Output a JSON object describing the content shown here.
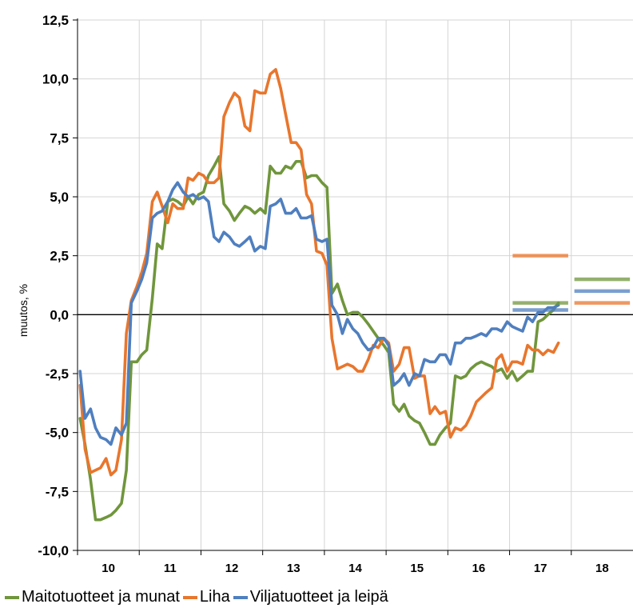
{
  "chart_data": {
    "type": "line",
    "ylabel": "muutos, %",
    "xlabel": "",
    "ylim": [
      -10,
      12.5
    ],
    "yticks": [
      "12,5",
      "10,0",
      "7,5",
      "5,0",
      "2,5",
      "0,0",
      "-2,5",
      "-5,0",
      "-7,5",
      "-10,0"
    ],
    "ytick_values": [
      12.5,
      10,
      7.5,
      5,
      2.5,
      0,
      -2.5,
      -5,
      -7.5,
      -10
    ],
    "xlim": [
      9.5,
      18.5
    ],
    "categories": [
      "10",
      "11",
      "12",
      "13",
      "14",
      "15",
      "16",
      "17",
      "18"
    ],
    "grid": true,
    "legend_position": "bottom-left",
    "series": [
      {
        "name": "Maitotuotteet ja munat",
        "color": "#70963C",
        "x": [
          9.5,
          9.58,
          9.67,
          9.75,
          9.83,
          9.92,
          10.0,
          10.08,
          10.17,
          10.25,
          10.33,
          10.42,
          10.5,
          10.58,
          10.67,
          10.75,
          10.83,
          10.92,
          11.0,
          11.08,
          11.17,
          11.25,
          11.33,
          11.42,
          11.5,
          11.58,
          11.67,
          11.75,
          11.83,
          11.92,
          12.0,
          12.08,
          12.17,
          12.25,
          12.33,
          12.42,
          12.5,
          12.58,
          12.67,
          12.75,
          12.83,
          12.92,
          13.0,
          13.08,
          13.17,
          13.25,
          13.33,
          13.42,
          13.5,
          13.58,
          13.67,
          13.75,
          13.83,
          13.92,
          14.0,
          14.08,
          14.17,
          14.25,
          14.33,
          14.42,
          14.5,
          14.58,
          14.67,
          14.75,
          14.83,
          14.92,
          15.0,
          15.08,
          15.17,
          15.25,
          15.33,
          15.42,
          15.5,
          15.58,
          15.67,
          15.75,
          15.83,
          15.92,
          16.0,
          16.08,
          16.17,
          16.25,
          16.33,
          16.42,
          16.5,
          16.58,
          16.67,
          16.75,
          16.83,
          16.92,
          17.0,
          17.08,
          17.17,
          17.25,
          17.33,
          17.42,
          17.5,
          17.58
        ],
        "values": [
          -4.4,
          -5.5,
          -7.0,
          -8.7,
          -8.7,
          -8.6,
          -8.5,
          -8.3,
          -8.0,
          -6.6,
          -2.0,
          -2.0,
          -1.7,
          -1.5,
          0.7,
          3.0,
          2.8,
          4.8,
          4.9,
          4.8,
          4.6,
          5.0,
          4.7,
          5.1,
          5.2,
          5.9,
          6.3,
          6.7,
          4.7,
          4.4,
          4.0,
          4.3,
          4.6,
          4.5,
          4.3,
          4.5,
          4.3,
          6.3,
          6.0,
          6.0,
          6.3,
          6.2,
          6.5,
          6.5,
          5.8,
          5.9,
          5.9,
          5.6,
          5.4,
          0.9,
          1.3,
          0.6,
          0.0,
          0.1,
          0.1,
          -0.1,
          -0.4,
          -0.7,
          -1.0,
          -1.3,
          -1.6,
          -3.8,
          -4.1,
          -3.8,
          -4.3,
          -4.5,
          -4.6,
          -5.0,
          -5.5,
          -5.5,
          -5.1,
          -4.8,
          -4.6,
          -2.6,
          -2.7,
          -2.6,
          -2.3,
          -2.1,
          -2.0,
          -2.1,
          -2.2,
          -2.4,
          -2.3,
          -2.7,
          -2.4,
          -2.8,
          -2.6,
          -2.4,
          -2.4,
          -0.3,
          -0.2,
          0.0,
          0.2,
          0.5,
          null,
          null,
          null,
          null
        ],
        "forecast": [
          {
            "year": "17",
            "value": 0.5
          },
          {
            "year": "18",
            "value": 1.5
          }
        ]
      },
      {
        "name": "Liha",
        "color": "#E8762D",
        "x": [
          9.5,
          9.58,
          9.67,
          9.75,
          9.83,
          9.92,
          10.0,
          10.08,
          10.17,
          10.25,
          10.33,
          10.42,
          10.5,
          10.58,
          10.67,
          10.75,
          10.83,
          10.92,
          11.0,
          11.08,
          11.17,
          11.25,
          11.33,
          11.42,
          11.5,
          11.58,
          11.67,
          11.75,
          11.83,
          11.92,
          12.0,
          12.08,
          12.17,
          12.25,
          12.33,
          12.42,
          12.5,
          12.58,
          12.67,
          12.75,
          12.83,
          12.92,
          13.0,
          13.08,
          13.17,
          13.25,
          13.33,
          13.42,
          13.5,
          13.58,
          13.67,
          13.75,
          13.83,
          13.92,
          14.0,
          14.08,
          14.17,
          14.25,
          14.33,
          14.42,
          14.5,
          14.58,
          14.67,
          14.75,
          14.83,
          14.92,
          15.0,
          15.08,
          15.17,
          15.25,
          15.33,
          15.42,
          15.5,
          15.58,
          15.67,
          15.75,
          15.83,
          15.92,
          16.0,
          16.08,
          16.17,
          16.25,
          16.33,
          16.42,
          16.5,
          16.58,
          16.67,
          16.75,
          16.83,
          16.92,
          17.0,
          17.08,
          17.17,
          17.25,
          17.33,
          17.42,
          17.5,
          17.58
        ],
        "values": [
          -3.0,
          -5.7,
          -6.7,
          -6.6,
          -6.5,
          -6.1,
          -6.8,
          -6.6,
          -5.3,
          -0.8,
          0.6,
          1.2,
          1.8,
          2.6,
          4.8,
          5.2,
          4.6,
          3.9,
          4.7,
          4.5,
          4.5,
          5.8,
          5.7,
          6.0,
          5.9,
          5.6,
          5.6,
          5.8,
          8.4,
          9.0,
          9.4,
          9.2,
          8.0,
          7.8,
          9.5,
          9.4,
          9.4,
          10.2,
          10.4,
          9.6,
          8.5,
          7.3,
          7.3,
          7.0,
          5.1,
          4.7,
          2.7,
          2.6,
          2.1,
          -1.0,
          -2.3,
          -2.2,
          -2.1,
          -2.2,
          -2.4,
          -2.4,
          -1.9,
          -1.3,
          -1.4,
          -1.0,
          -1.2,
          -2.4,
          -2.1,
          -1.4,
          -1.4,
          -2.7,
          -2.6,
          -2.6,
          -4.2,
          -3.9,
          -4.2,
          -4.1,
          -5.2,
          -4.8,
          -4.9,
          -4.7,
          -4.3,
          -3.7,
          -3.5,
          -3.3,
          -3.1,
          -1.9,
          -1.7,
          -2.4,
          -2.0,
          -2.0,
          -2.1,
          -1.3,
          -1.5,
          -1.5,
          -1.7,
          -1.5,
          -1.6,
          -1.2,
          null,
          null,
          null,
          null
        ],
        "forecast": [
          {
            "year": "17",
            "value": 2.5
          },
          {
            "year": "18",
            "value": 0.5
          }
        ]
      },
      {
        "name": "Viljatuotteet ja leipä",
        "color": "#4F7FBF",
        "x": [
          9.5,
          9.58,
          9.67,
          9.75,
          9.83,
          9.92,
          10.0,
          10.08,
          10.17,
          10.25,
          10.33,
          10.42,
          10.5,
          10.58,
          10.67,
          10.75,
          10.83,
          10.92,
          11.0,
          11.08,
          11.17,
          11.25,
          11.33,
          11.42,
          11.5,
          11.58,
          11.67,
          11.75,
          11.83,
          11.92,
          12.0,
          12.08,
          12.17,
          12.25,
          12.33,
          12.42,
          12.5,
          12.58,
          12.67,
          12.75,
          12.83,
          12.92,
          13.0,
          13.08,
          13.17,
          13.25,
          13.33,
          13.42,
          13.5,
          13.58,
          13.67,
          13.75,
          13.83,
          13.92,
          14.0,
          14.08,
          14.17,
          14.25,
          14.33,
          14.42,
          14.5,
          14.58,
          14.67,
          14.75,
          14.83,
          14.92,
          15.0,
          15.08,
          15.17,
          15.25,
          15.33,
          15.42,
          15.5,
          15.58,
          15.67,
          15.75,
          15.83,
          15.92,
          16.0,
          16.08,
          16.17,
          16.25,
          16.33,
          16.42,
          16.5,
          16.58,
          16.67,
          16.75,
          16.83,
          16.92,
          17.0,
          17.08,
          17.17,
          17.25,
          17.33,
          17.42,
          17.5,
          17.58
        ],
        "values": [
          -2.4,
          -4.4,
          -4.0,
          -4.8,
          -5.2,
          -5.3,
          -5.5,
          -4.8,
          -5.1,
          -4.6,
          0.5,
          1.0,
          1.5,
          2.2,
          4.1,
          4.3,
          4.4,
          4.8,
          5.3,
          5.6,
          5.2,
          5.0,
          5.1,
          4.9,
          5.0,
          4.8,
          3.3,
          3.1,
          3.5,
          3.3,
          3.0,
          2.9,
          3.1,
          3.3,
          2.7,
          2.9,
          2.8,
          4.6,
          4.7,
          4.9,
          4.3,
          4.3,
          4.5,
          4.1,
          4.1,
          4.2,
          3.2,
          3.1,
          3.2,
          0.4,
          0.0,
          -0.8,
          -0.2,
          -0.6,
          -0.8,
          -1.2,
          -1.5,
          -1.4,
          -1.0,
          -1.0,
          -1.3,
          -3.0,
          -2.8,
          -2.5,
          -3.0,
          -2.5,
          -2.6,
          -1.9,
          -2.0,
          -2.0,
          -1.7,
          -1.7,
          -2.1,
          -1.2,
          -1.2,
          -1.0,
          -1.0,
          -0.9,
          -0.8,
          -0.9,
          -0.6,
          -0.6,
          -0.7,
          -0.3,
          -0.5,
          -0.6,
          -0.7,
          -0.1,
          -0.3,
          0.1,
          0.1,
          0.3,
          0.3,
          0.4,
          null,
          null,
          null,
          null
        ],
        "forecast": [
          {
            "year": "17",
            "value": 0.2
          },
          {
            "year": "18",
            "value": 1.0
          }
        ]
      }
    ]
  }
}
